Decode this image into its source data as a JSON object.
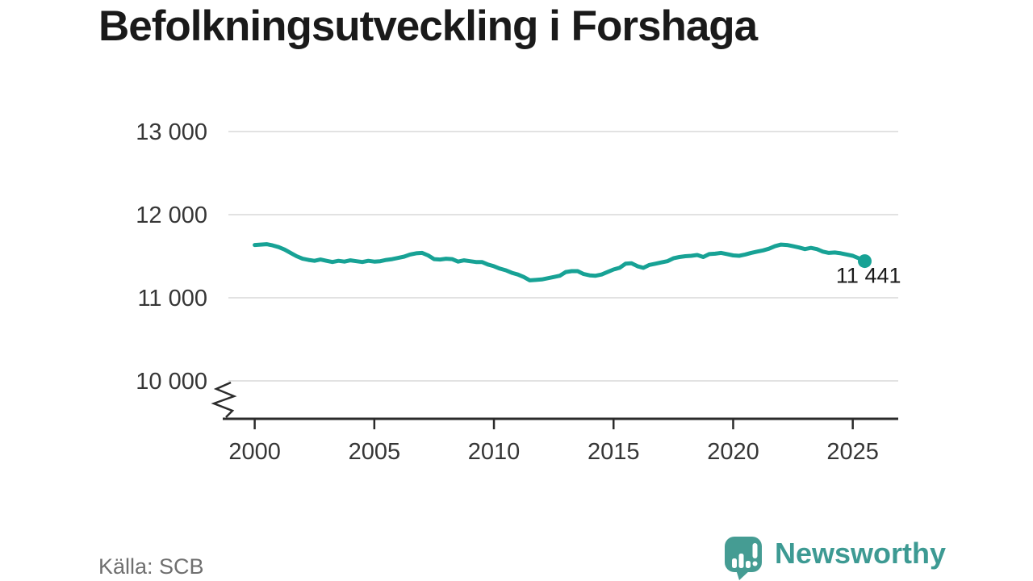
{
  "page": {
    "title": "Befolkningsutveckling i Forshaga",
    "source": "Källa: SCB",
    "brand": "Newsworthy"
  },
  "colors": {
    "line": "#17a295",
    "logo": "#459c93",
    "logo_text": "#3d9a93",
    "grid": "#e2e2e2",
    "axis": "#2b2b2b",
    "axis_label": "#363636",
    "title_text": "#1a1a1a",
    "annotation_text": "#1a1a1a",
    "source_text": "#6f6f6f"
  },
  "chart_data": {
    "type": "line",
    "title": "Befolkningsutveckling i Forshaga",
    "xlabel": "",
    "ylabel": "",
    "grid": "horizontal",
    "legend": "none",
    "axis_break_bottom_left": true,
    "xlim": [
      1998.9,
      2026.9
    ],
    "ylim_visible_ticks": [
      10000,
      13000
    ],
    "x_ticks": {
      "values": [
        2000,
        2005,
        2010,
        2015,
        2020,
        2025
      ],
      "labels": [
        "2000",
        "2005",
        "2010",
        "2015",
        "2020",
        "2025"
      ]
    },
    "y_ticks": {
      "values": [
        13000,
        12000,
        11000,
        10000
      ],
      "labels": [
        "13 000",
        "12 000",
        "11 000",
        "10 000"
      ]
    },
    "end_label": "11 441",
    "end_point": {
      "x": 2025.5,
      "value": 11441
    },
    "series": [
      {
        "name": "Befolkning",
        "x": [
          2000,
          2000.25,
          2000.5,
          2000.75,
          2001,
          2001.25,
          2001.5,
          2001.75,
          2002,
          2002.25,
          2002.5,
          2002.75,
          2003,
          2003.25,
          2003.5,
          2003.75,
          2004,
          2004.25,
          2004.5,
          2004.75,
          2005,
          2005.25,
          2005.5,
          2005.75,
          2006,
          2006.25,
          2006.5,
          2006.75,
          2007,
          2007.25,
          2007.5,
          2007.75,
          2008,
          2008.25,
          2008.5,
          2008.75,
          2009,
          2009.25,
          2009.5,
          2009.75,
          2010,
          2010.25,
          2010.5,
          2010.75,
          2011,
          2011.25,
          2011.5,
          2011.75,
          2012,
          2012.25,
          2012.5,
          2012.75,
          2013,
          2013.25,
          2013.5,
          2013.75,
          2014,
          2014.25,
          2014.5,
          2014.75,
          2015,
          2015.25,
          2015.5,
          2015.75,
          2016,
          2016.25,
          2016.5,
          2016.75,
          2017,
          2017.25,
          2017.5,
          2017.75,
          2018,
          2018.25,
          2018.5,
          2018.75,
          2019,
          2019.25,
          2019.5,
          2019.75,
          2020,
          2020.25,
          2020.5,
          2020.75,
          2021,
          2021.25,
          2021.5,
          2021.75,
          2022,
          2022.25,
          2022.5,
          2022.75,
          2023,
          2023.25,
          2023.5,
          2023.75,
          2024,
          2024.25,
          2024.5,
          2024.75,
          2025,
          2025.25,
          2025.5
        ],
        "values": [
          11635,
          11640,
          11645,
          11630,
          11610,
          11580,
          11540,
          11500,
          11470,
          11455,
          11445,
          11460,
          11445,
          11430,
          11445,
          11435,
          11450,
          11440,
          11430,
          11445,
          11435,
          11440,
          11455,
          11465,
          11480,
          11495,
          11520,
          11535,
          11540,
          11510,
          11465,
          11460,
          11470,
          11465,
          11435,
          11450,
          11440,
          11430,
          11430,
          11400,
          11380,
          11350,
          11330,
          11300,
          11280,
          11250,
          11210,
          11215,
          11220,
          11235,
          11250,
          11265,
          11310,
          11320,
          11320,
          11285,
          11270,
          11265,
          11280,
          11310,
          11340,
          11360,
          11410,
          11415,
          11380,
          11360,
          11395,
          11410,
          11425,
          11440,
          11475,
          11490,
          11500,
          11505,
          11515,
          11490,
          11525,
          11530,
          11540,
          11525,
          11510,
          11505,
          11520,
          11540,
          11555,
          11570,
          11590,
          11620,
          11640,
          11635,
          11620,
          11605,
          11585,
          11600,
          11585,
          11555,
          11540,
          11545,
          11535,
          11520,
          11505,
          11475,
          11441
        ]
      }
    ]
  }
}
